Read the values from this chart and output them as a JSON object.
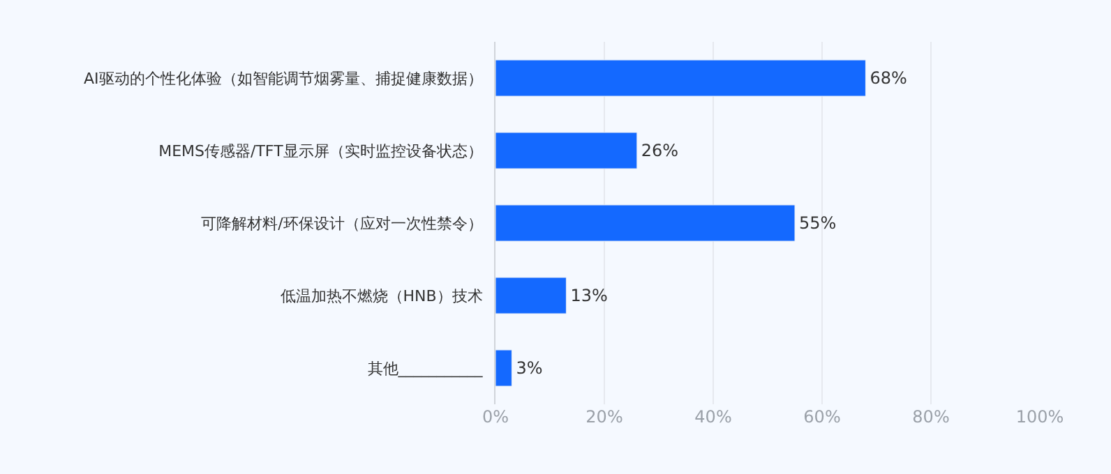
{
  "chart_data": {
    "type": "bar",
    "orientation": "horizontal",
    "categories": [
      "AI驱动的个性化体验（如智能调节烟雾量、捕捉健康数据）",
      "MEMS传感器/TFT显示屏（实时监控设备状态）",
      "可降解材料/环保设计（应对一次性禁令）",
      "低温加热不燃烧（HNB）技术",
      "其他___________"
    ],
    "values": [
      68,
      26,
      55,
      13,
      3
    ],
    "value_labels": [
      "68%",
      "26%",
      "55%",
      "13%",
      "3%"
    ],
    "color": "#1469ff",
    "xlim": [
      0,
      100
    ],
    "xticks": [
      {
        "value": 0,
        "label": "0%"
      },
      {
        "value": 20,
        "label": "20%"
      },
      {
        "value": 40,
        "label": "40%"
      },
      {
        "value": 60,
        "label": "60%"
      },
      {
        "value": 80,
        "label": "80%"
      },
      {
        "value": 100,
        "label": "100%"
      }
    ],
    "grid": "x"
  }
}
